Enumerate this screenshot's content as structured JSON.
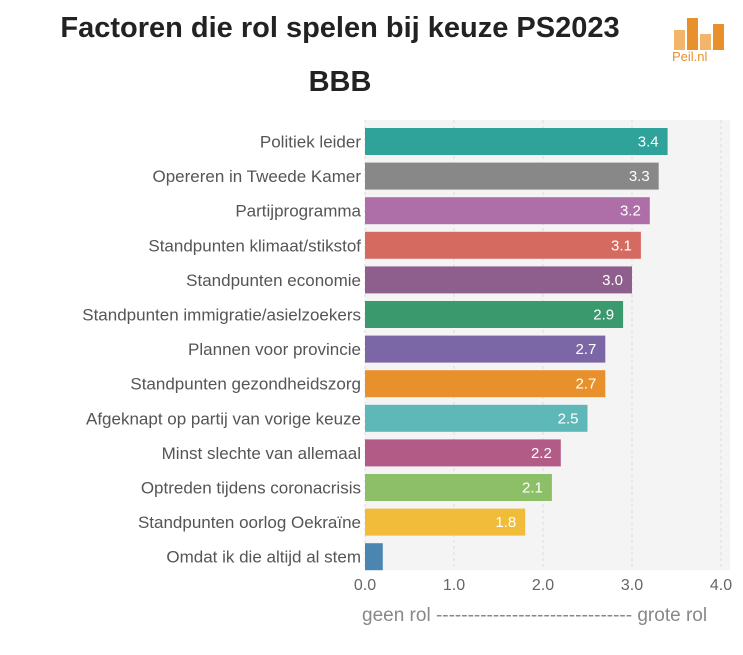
{
  "title_line1": "Factoren die rol spelen bij keuze PS2023",
  "title_line2": "BBB",
  "logo": {
    "text": "Peil.nl",
    "color": "#e8912c",
    "icon": "bar-chart-logo-icon"
  },
  "scale_note": "geen rol ------------------------------- grote rol",
  "chart_data": {
    "type": "bar",
    "orientation": "horizontal",
    "title": "Factoren die rol spelen bij keuze PS2023",
    "subtitle": "BBB",
    "categories": [
      "Politiek leider",
      "Opereren in Tweede Kamer",
      "Partijprogramma",
      "Standpunten klimaat/stikstof",
      "Standpunten economie",
      "Standpunten immigratie/asielzoekers",
      "Plannen voor provincie",
      "Standpunten gezondheidszorg",
      "Afgeknapt op partij van vorige keuze",
      "Minst slechte van allemaal",
      "Optreden tijdens coronacrisis",
      "Standpunten oorlog Oekraïne",
      "Omdat ik die altijd al stem"
    ],
    "values": [
      3.4,
      3.3,
      3.2,
      3.1,
      3.0,
      2.9,
      2.7,
      2.7,
      2.5,
      2.2,
      2.1,
      1.8,
      0.2
    ],
    "value_labels": [
      "3.4",
      "3.3",
      "3.2",
      "3.1",
      "3.0",
      "2.9",
      "2.7",
      "2.7",
      "2.5",
      "2.2",
      "2.1",
      "1.8",
      ""
    ],
    "colors": [
      "#2fa39a",
      "#888888",
      "#ae6fa9",
      "#d56b60",
      "#8e5e8c",
      "#3a9a6e",
      "#7c67a6",
      "#e8912c",
      "#5fb8b8",
      "#b25b86",
      "#8cbf68",
      "#f0bc3a",
      "#4b86b0"
    ],
    "xlim": [
      0,
      4
    ],
    "xticks": [
      0,
      1,
      2,
      3,
      4
    ],
    "xtick_labels": [
      "0.0",
      "1.0",
      "2.0",
      "3.0",
      "4.0"
    ],
    "grid": true,
    "xlabel": "",
    "ylabel": ""
  }
}
